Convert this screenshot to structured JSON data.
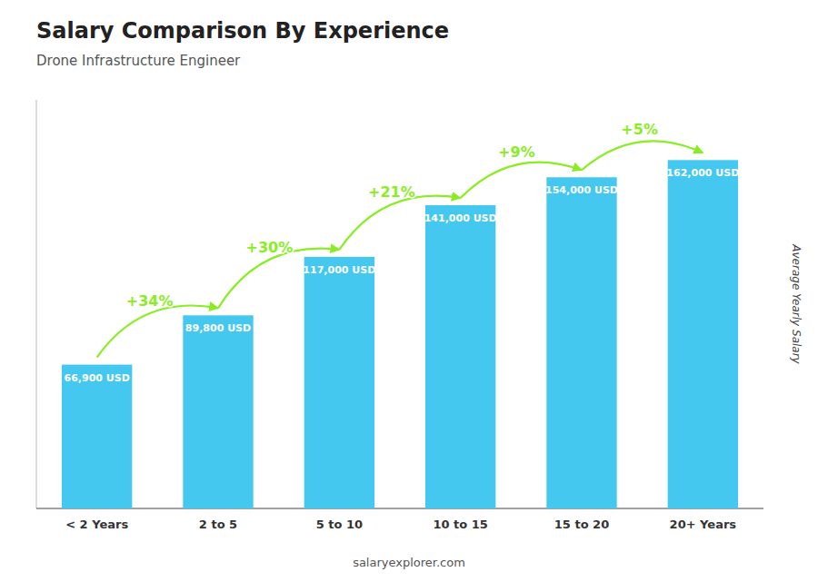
{
  "chart_data": {
    "type": "bar",
    "title": "Salary Comparison By Experience",
    "subtitle": "Drone Infrastructure Engineer",
    "categories": [
      "< 2 Years",
      "2 to 5",
      "5 to 10",
      "10 to 15",
      "15 to 20",
      "20+ Years"
    ],
    "values": [
      66900,
      89800,
      117000,
      141000,
      154000,
      162000
    ],
    "value_labels": [
      "66,900 USD",
      "89,800 USD",
      "117,000 USD",
      "141,000 USD",
      "154,000 USD",
      "162,000 USD"
    ],
    "data_labels": true,
    "color": "#45C8F0",
    "ylabel": "Average Yearly Salary",
    "ylim": [
      0,
      190000
    ],
    "tick_labels": "x",
    "grid": false,
    "annotations": [
      {
        "text": "+34%",
        "color": "#88EE22"
      },
      {
        "text": "+30%",
        "color": "#88EE22"
      },
      {
        "text": "+21%",
        "color": "#88EE22"
      },
      {
        "text": "+9%",
        "color": "#88EE22"
      },
      {
        "text": "+5%",
        "color": "#88EE22"
      }
    ],
    "footer": "salaryexplorer.com"
  }
}
